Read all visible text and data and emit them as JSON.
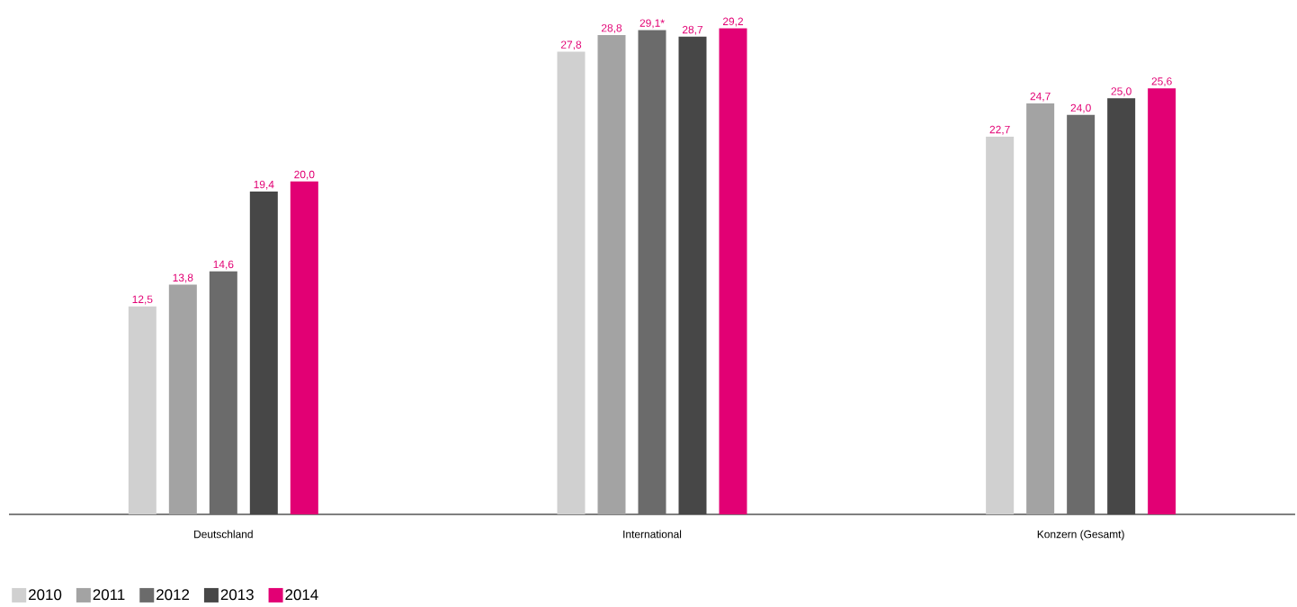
{
  "chart_data": {
    "type": "bar",
    "categories": [
      "Deutschland",
      "International",
      "Konzern (Gesamt)"
    ],
    "series": [
      {
        "name": "2010",
        "color": "#d0d0d0",
        "values": [
          12.5,
          27.8,
          22.7
        ],
        "value_labels": [
          "12,5",
          "27,8",
          "22,7"
        ]
      },
      {
        "name": "2011",
        "color": "#a3a3a3",
        "values": [
          13.8,
          28.8,
          24.7
        ],
        "value_labels": [
          "13,8",
          "28,8",
          "24,7"
        ]
      },
      {
        "name": "2012",
        "color": "#6b6b6b",
        "values": [
          14.6,
          29.1,
          24.0
        ],
        "value_labels": [
          "14,6",
          "29,1*",
          "24,0"
        ]
      },
      {
        "name": "2013",
        "color": "#474747",
        "values": [
          19.4,
          28.7,
          25.0
        ],
        "value_labels": [
          "19,4",
          "28,7",
          "25,0"
        ]
      },
      {
        "name": "2014",
        "color": "#e20074",
        "values": [
          20.0,
          29.2,
          25.6
        ],
        "value_labels": [
          "20,0",
          "29,2",
          "25,6"
        ]
      }
    ],
    "legend": "bottom left"
  }
}
